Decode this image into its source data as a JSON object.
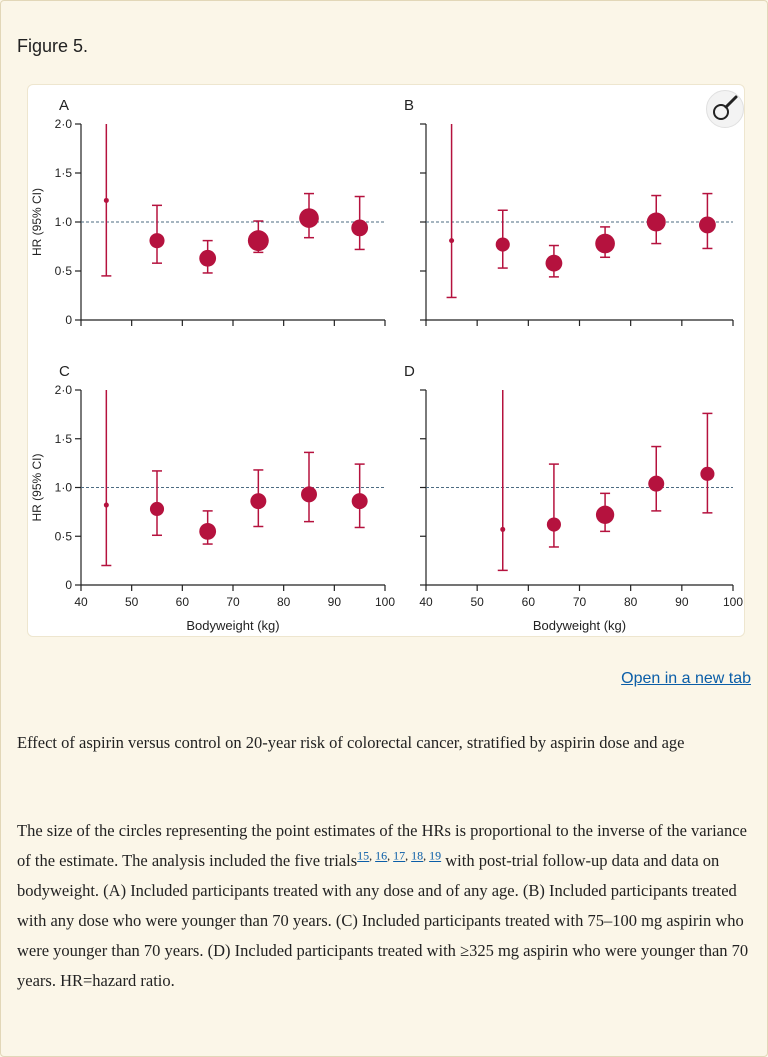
{
  "figure_title": "Figure 5.",
  "open_link": "Open in a new tab",
  "zoom_icon": "magnifier-icon",
  "caption": "Effect of aspirin versus control on 20-year risk of colorectal cancer, stratified by aspirin dose and age",
  "description": {
    "part1": "The size of the circles representing the point estimates of the HRs is proportional to the inverse of the variance of the estimate. The analysis included the five trials",
    "refs": [
      "15",
      "16",
      "17",
      "18",
      "19"
    ],
    "part2": " with post-trial follow-up data and data on bodyweight. (A) Included participants treated with any dose and of any age. (B) Included participants treated with any dose who were younger than 70 years. (C) Included participants treated with 75–100 mg aspirin who were younger than 70 years. (D) Included participants treated with ≥325 mg aspirin who were younger than 70 years. HR=hazard ratio."
  },
  "colors": {
    "marker": "#b5123e",
    "reference_line": "#4d6b82",
    "axis": "#222222"
  },
  "chart_data": [
    {
      "panel": "A",
      "type": "scatter",
      "xlabel": "",
      "ylabel": "HR (95% CI)",
      "xlim": [
        40,
        100
      ],
      "ylim": [
        0,
        2
      ],
      "xticks": [
        40,
        50,
        60,
        70,
        80,
        90,
        100
      ],
      "show_xtick_labels": false,
      "yticks": [
        0,
        0.5,
        1.0,
        1.5,
        2.0
      ],
      "ytick_labels": [
        "0",
        "0·5",
        "1·0",
        "1·5",
        "2·0"
      ],
      "reference_line": 1.0,
      "points": [
        {
          "x": 45,
          "y": 1.22,
          "lo": 0.45,
          "hi": 2.0,
          "weight": 1
        },
        {
          "x": 55,
          "y": 0.81,
          "lo": 0.58,
          "hi": 1.17,
          "weight": 3
        },
        {
          "x": 65,
          "y": 0.63,
          "lo": 0.48,
          "hi": 0.81,
          "weight": 4
        },
        {
          "x": 75,
          "y": 0.81,
          "lo": 0.69,
          "hi": 1.01,
          "weight": 7
        },
        {
          "x": 85,
          "y": 1.04,
          "lo": 0.84,
          "hi": 1.29,
          "weight": 6
        },
        {
          "x": 95,
          "y": 0.94,
          "lo": 0.72,
          "hi": 1.26,
          "weight": 4
        }
      ]
    },
    {
      "panel": "B",
      "type": "scatter",
      "xlabel": "",
      "ylabel": "",
      "xlim": [
        40,
        100
      ],
      "ylim": [
        0,
        2
      ],
      "xticks": [
        40,
        50,
        60,
        70,
        80,
        90,
        100
      ],
      "show_xtick_labels": false,
      "yticks": [
        0,
        0.5,
        1.0,
        1.5,
        2.0
      ],
      "ytick_labels": [],
      "reference_line": 1.0,
      "points": [
        {
          "x": 45,
          "y": 0.81,
          "lo": 0.23,
          "hi": 2.0,
          "weight": 1
        },
        {
          "x": 55,
          "y": 0.77,
          "lo": 0.53,
          "hi": 1.12,
          "weight": 2.5
        },
        {
          "x": 65,
          "y": 0.58,
          "lo": 0.44,
          "hi": 0.76,
          "weight": 4
        },
        {
          "x": 75,
          "y": 0.78,
          "lo": 0.64,
          "hi": 0.95,
          "weight": 6
        },
        {
          "x": 85,
          "y": 1.0,
          "lo": 0.78,
          "hi": 1.27,
          "weight": 5.5
        },
        {
          "x": 95,
          "y": 0.97,
          "lo": 0.73,
          "hi": 1.29,
          "weight": 4
        }
      ]
    },
    {
      "panel": "C",
      "type": "scatter",
      "xlabel": "Bodyweight (kg)",
      "ylabel": "HR (95% CI)",
      "xlim": [
        40,
        100
      ],
      "ylim": [
        0,
        2
      ],
      "xticks": [
        40,
        50,
        60,
        70,
        80,
        90,
        100
      ],
      "show_xtick_labels": true,
      "yticks": [
        0,
        0.5,
        1.0,
        1.5,
        2.0
      ],
      "ytick_labels": [
        "0",
        "0·5",
        "1·0",
        "1·5",
        "2·0"
      ],
      "reference_line": 1.0,
      "points": [
        {
          "x": 45,
          "y": 0.82,
          "lo": 0.2,
          "hi": 2.0,
          "weight": 1
        },
        {
          "x": 55,
          "y": 0.78,
          "lo": 0.51,
          "hi": 1.17,
          "weight": 2.5
        },
        {
          "x": 65,
          "y": 0.55,
          "lo": 0.42,
          "hi": 0.76,
          "weight": 4
        },
        {
          "x": 75,
          "y": 0.86,
          "lo": 0.6,
          "hi": 1.18,
          "weight": 3.5
        },
        {
          "x": 85,
          "y": 0.93,
          "lo": 0.65,
          "hi": 1.36,
          "weight": 3.5
        },
        {
          "x": 95,
          "y": 0.86,
          "lo": 0.59,
          "hi": 1.24,
          "weight": 3.5
        }
      ]
    },
    {
      "panel": "D",
      "type": "scatter",
      "xlabel": "Bodyweight (kg)",
      "ylabel": "",
      "xlim": [
        40,
        100
      ],
      "ylim": [
        0,
        2
      ],
      "xticks": [
        40,
        50,
        60,
        70,
        80,
        90,
        100
      ],
      "show_xtick_labels": true,
      "yticks": [
        0,
        0.5,
        1.0,
        1.5,
        2.0
      ],
      "ytick_labels": [],
      "reference_line": 1.0,
      "points": [
        {
          "x": 55,
          "y": 0.57,
          "lo": 0.15,
          "hi": 2.0,
          "weight": 1
        },
        {
          "x": 65,
          "y": 0.62,
          "lo": 0.39,
          "hi": 1.24,
          "weight": 2.5
        },
        {
          "x": 75,
          "y": 0.72,
          "lo": 0.55,
          "hi": 0.94,
          "weight": 5
        },
        {
          "x": 85,
          "y": 1.04,
          "lo": 0.76,
          "hi": 1.42,
          "weight": 3.5
        },
        {
          "x": 95,
          "y": 1.14,
          "lo": 0.74,
          "hi": 1.76,
          "weight": 2.5
        }
      ]
    }
  ]
}
